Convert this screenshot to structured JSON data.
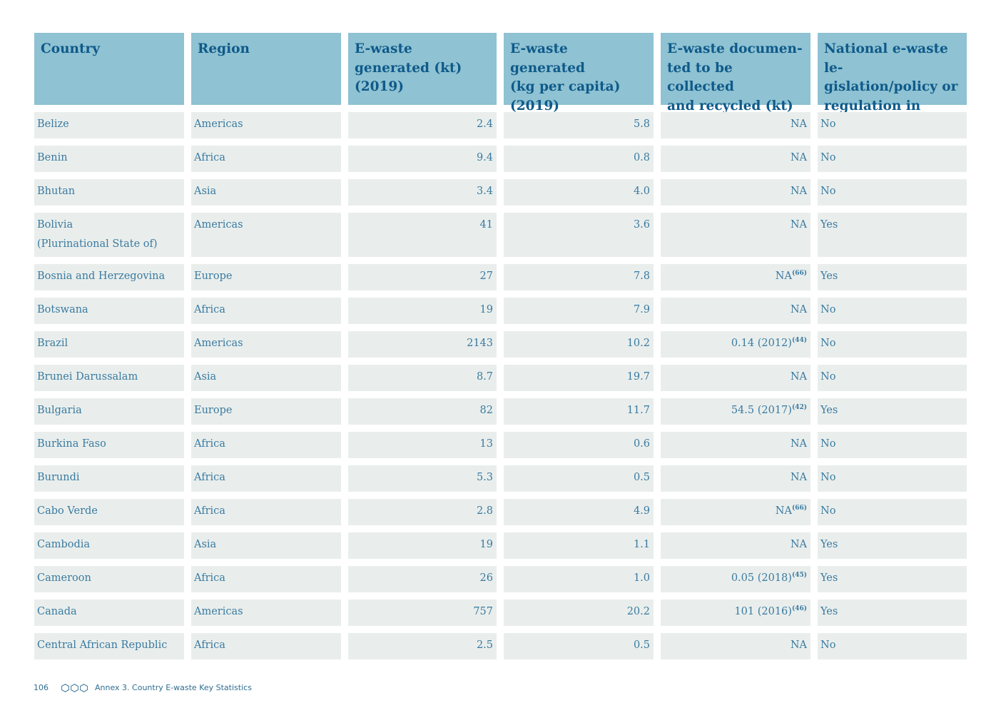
{
  "table": {
    "headers": [
      "Country",
      "Region",
      "E-waste generated (kt) (2019)",
      "E-waste generated (kg per capita) (2019)",
      "E-waste documen-ted to be collected and recycled (kt)",
      "National e-waste le-gislation/policy or regulation in place"
    ],
    "header_lines": [
      [
        "Country"
      ],
      [
        "Region"
      ],
      [
        "E-waste",
        "generated (kt)",
        "(2019)"
      ],
      [
        "E-waste",
        "generated",
        "(kg per capita) (2019)"
      ],
      [
        "E-waste documen-",
        "ted to be collected",
        "and recycled (kt)"
      ],
      [
        "National e-waste le-",
        "gislation/policy or",
        "regulation in place"
      ]
    ],
    "rows": [
      {
        "country": "Belize",
        "country_line2": "",
        "region": "Americas",
        "generated_kt": "2.4",
        "per_capita": "5.8",
        "collected": "NA",
        "note": "",
        "legislation": "No"
      },
      {
        "country": "Benin",
        "country_line2": "",
        "region": "Africa",
        "generated_kt": "9.4",
        "per_capita": "0.8",
        "collected": "NA",
        "note": "",
        "legislation": "No"
      },
      {
        "country": "Bhutan",
        "country_line2": "",
        "region": "Asia",
        "generated_kt": "3.4",
        "per_capita": "4.0",
        "collected": "NA",
        "note": "",
        "legislation": "No"
      },
      {
        "country": "Bolivia",
        "country_line2": "(Plurinational State of)",
        "region": "Americas",
        "generated_kt": "41",
        "per_capita": "3.6",
        "collected": "NA",
        "note": "",
        "legislation": "Yes"
      },
      {
        "country": "Bosnia and Herzegovina",
        "country_line2": "",
        "region": "Europe",
        "generated_kt": "27",
        "per_capita": "7.8",
        "collected": "NA",
        "note": "(66)",
        "legislation": "Yes"
      },
      {
        "country": "Botswana",
        "country_line2": "",
        "region": "Africa",
        "generated_kt": "19",
        "per_capita": "7.9",
        "collected": "NA",
        "note": "",
        "legislation": "No"
      },
      {
        "country": "Brazil",
        "country_line2": "",
        "region": "Americas",
        "generated_kt": "2143",
        "per_capita": "10.2",
        "collected": "0.14 (2012)",
        "note": "(44)",
        "legislation": "No"
      },
      {
        "country": "Brunei Darussalam",
        "country_line2": "",
        "region": "Asia",
        "generated_kt": "8.7",
        "per_capita": "19.7",
        "collected": "NA",
        "note": "",
        "legislation": "No"
      },
      {
        "country": "Bulgaria",
        "country_line2": "",
        "region": "Europe",
        "generated_kt": "82",
        "per_capita": "11.7",
        "collected": "54.5 (2017)",
        "note": "(42)",
        "legislation": "Yes"
      },
      {
        "country": "Burkina Faso",
        "country_line2": "",
        "region": "Africa",
        "generated_kt": "13",
        "per_capita": "0.6",
        "collected": "NA",
        "note": "",
        "legislation": "No"
      },
      {
        "country": "Burundi",
        "country_line2": "",
        "region": "Africa",
        "generated_kt": "5.3",
        "per_capita": "0.5",
        "collected": "NA",
        "note": "",
        "legislation": "No"
      },
      {
        "country": "Cabo Verde",
        "country_line2": "",
        "region": "Africa",
        "generated_kt": "2.8",
        "per_capita": "4.9",
        "collected": "NA",
        "note": "(66)",
        "legislation": "No"
      },
      {
        "country": "Cambodia",
        "country_line2": "",
        "region": "Asia",
        "generated_kt": "19",
        "per_capita": "1.1",
        "collected": "NA",
        "note": "",
        "legislation": "Yes"
      },
      {
        "country": "Cameroon",
        "country_line2": "",
        "region": "Africa",
        "generated_kt": "26",
        "per_capita": "1.0",
        "collected": "0.05 (2018)",
        "note": "(45)",
        "legislation": "Yes"
      },
      {
        "country": "Canada",
        "country_line2": "",
        "region": "Americas",
        "generated_kt": "757",
        "per_capita": "20.2",
        "collected": "101 (2016)",
        "note": "(46)",
        "legislation": "Yes"
      },
      {
        "country": "Central African Republic",
        "country_line2": "",
        "region": "Africa",
        "generated_kt": "2.5",
        "per_capita": "0.5",
        "collected": "NA",
        "note": "",
        "legislation": "No"
      }
    ]
  },
  "footer": {
    "page_number": "106",
    "section": "Annex 3. Country E-waste Key Statistics",
    "icon": "hexagon-trio-icon"
  }
}
